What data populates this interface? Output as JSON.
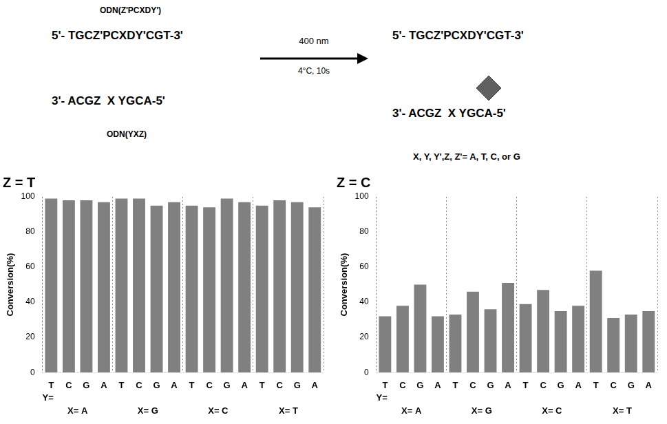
{
  "chart_data": [
    {
      "type": "bar",
      "title": "Z = T",
      "categories": [
        "T",
        "C",
        "G",
        "A",
        "T",
        "C",
        "G",
        "A",
        "T",
        "C",
        "G",
        "A",
        "T",
        "C",
        "G",
        "A"
      ],
      "groups": [
        "X= A",
        "X= G",
        "X= C",
        "X= T"
      ],
      "values": [
        99,
        98,
        98,
        97,
        99,
        99,
        95,
        97,
        95,
        94,
        99,
        97,
        95,
        98,
        97,
        94
      ],
      "color": "#808080",
      "xlabel": "Y=",
      "ylabel": "Conversion(%)",
      "ylim": [
        0,
        100
      ],
      "yticks": [
        0,
        20,
        40,
        60,
        80,
        100
      ],
      "grid": false,
      "annotations": [
        "ODN(Z'PCXDY')",
        "5'- TGCZ'PCXDY'CGT-3'",
        "3'- ACGZ  X YGCA-5'",
        "ODN(YXZ)",
        "400 nm",
        "4°C, 10s"
      ]
    },
    {
      "type": "bar",
      "title": "Z = C",
      "categories": [
        "T",
        "C",
        "G",
        "A",
        "T",
        "C",
        "G",
        "A",
        "T",
        "C",
        "G",
        "A",
        "T",
        "C",
        "G",
        "A"
      ],
      "groups": [
        "X= A",
        "X= G",
        "X= C",
        "X= T"
      ],
      "values": [
        32,
        38,
        50,
        32,
        33,
        46,
        36,
        51,
        39,
        47,
        35,
        38,
        58,
        31,
        33,
        35
      ],
      "color": "#808080",
      "xlabel": "Y=",
      "ylabel": "Conversion(%)",
      "ylim": [
        0,
        100
      ],
      "yticks": [
        0,
        20,
        40,
        60,
        80,
        100
      ],
      "grid": false,
      "annotations": [
        "5'- TGCZ'PCXDY'CGT-3'",
        "3'- ACGZ  X YGCA-5'",
        "X, Y, Y',Z, Z'= A, T, C, or G"
      ]
    }
  ]
}
